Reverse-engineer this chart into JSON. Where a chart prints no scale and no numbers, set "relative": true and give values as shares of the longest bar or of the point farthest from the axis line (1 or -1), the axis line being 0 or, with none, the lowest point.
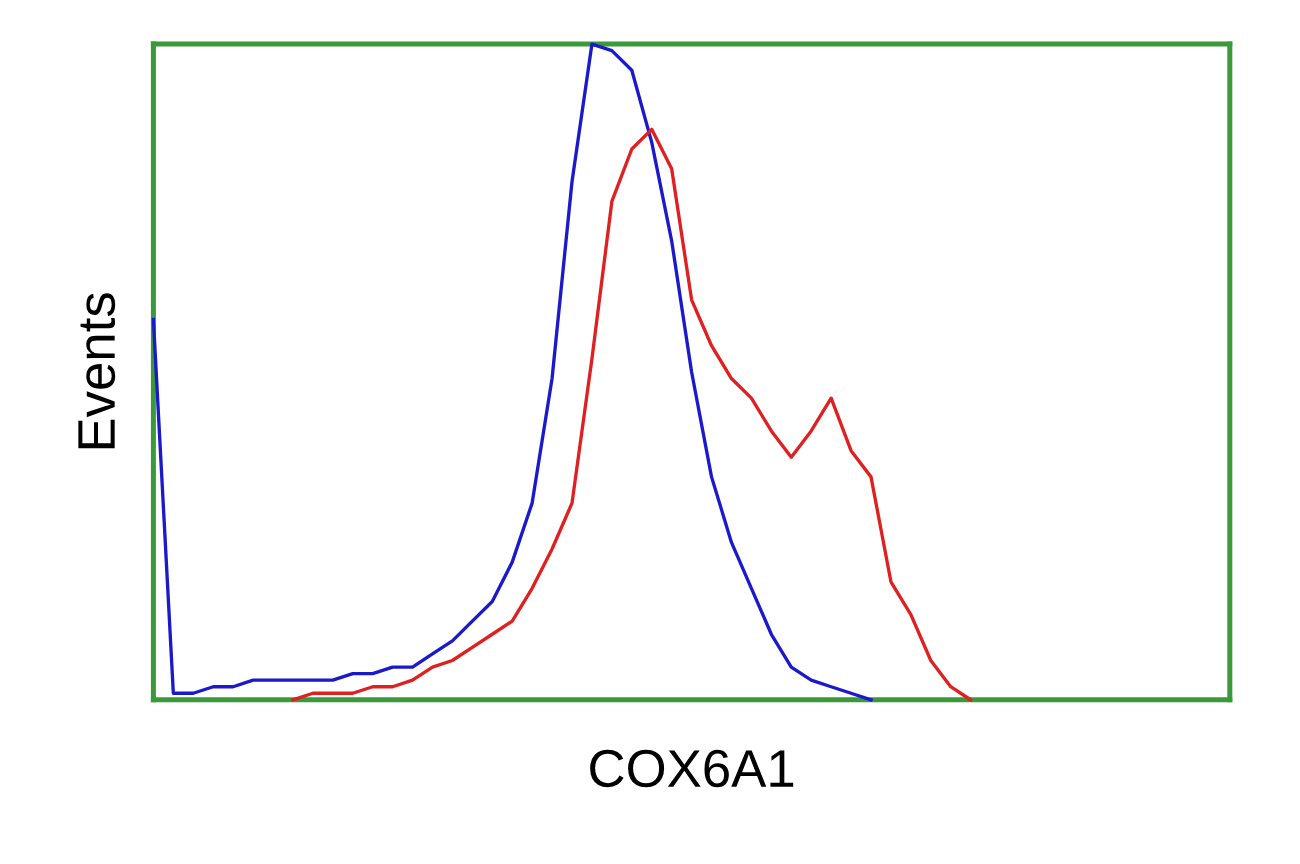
{
  "chart_data": {
    "type": "line",
    "xlabel": "COX6A1",
    "ylabel": "Events",
    "relative": true,
    "grid": false,
    "marker": "none",
    "line_style": "solid",
    "categories": [
      null,
      null,
      null,
      null,
      null,
      null,
      null,
      null,
      null,
      null,
      null,
      null,
      null,
      null,
      null,
      null,
      null,
      null,
      null,
      null,
      null,
      null,
      null,
      null,
      null,
      null,
      null,
      null,
      null,
      null,
      null,
      null,
      null,
      null,
      null,
      null,
      null,
      null,
      null,
      null,
      null,
      null,
      null,
      null,
      null,
      null,
      null,
      null,
      null,
      null,
      null,
      null,
      null,
      null,
      null
    ],
    "series": [
      {
        "color": "#1a1acc",
        "values": [
          0.58,
          0.01,
          0.01,
          0.02,
          0.02,
          0.03,
          0.03,
          0.03,
          0.03,
          0.03,
          0.04,
          0.04,
          0.05,
          0.05,
          0.07,
          0.09,
          0.12,
          0.15,
          0.21,
          0.3,
          0.49,
          0.79,
          1.0,
          0.99,
          0.96,
          0.85,
          0.7,
          0.5,
          0.34,
          0.24,
          0.17,
          0.1,
          0.05,
          0.03,
          0.02,
          0.01,
          0,
          null,
          null,
          null,
          null,
          null,
          null,
          null,
          null,
          null,
          null,
          null,
          null,
          null,
          null,
          null,
          null,
          null,
          null
        ]
      },
      {
        "color": "#e02020",
        "values": [
          null,
          null,
          null,
          null,
          null,
          null,
          null,
          0,
          0.01,
          0.01,
          0.01,
          0.02,
          0.02,
          0.03,
          0.05,
          0.06,
          0.08,
          0.1,
          0.12,
          0.17,
          0.23,
          0.3,
          0.52,
          0.76,
          0.84,
          0.87,
          0.81,
          0.61,
          0.54,
          0.49,
          0.46,
          0.41,
          0.37,
          0.41,
          0.46,
          0.38,
          0.34,
          0.18,
          0.13,
          0.06,
          0.02,
          0,
          null,
          null,
          null,
          null,
          null,
          null,
          null,
          null,
          null,
          null,
          null,
          null,
          null
        ]
      }
    ]
  }
}
